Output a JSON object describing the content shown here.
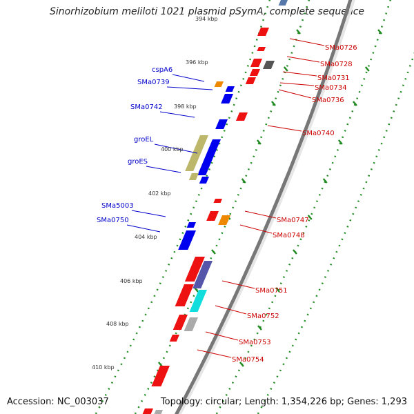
{
  "title": "Sinorhizobium meliloti 1021 plasmid pSymA, complete sequence",
  "footer": {
    "accession": "Accession: NC_003037",
    "summary": "Topology: circular; Length: 1,354,226 bp; Genes: 1,293"
  },
  "colors": {
    "forward_label": "#0000cc",
    "reverse_label": "#cc0000",
    "tick": "#228b22",
    "backbone": "#777777"
  },
  "kbp_labels": [
    "394 kbp",
    "396 kbp",
    "398 kbp",
    "400 kbp",
    "402 kbp",
    "404 kbp",
    "406 kbp",
    "408 kbp",
    "410 kbp"
  ],
  "forward_genes": [
    "cspA6",
    "SMa0739",
    "SMa0742",
    "groEL",
    "groES",
    "SMa5003",
    "SMa0750"
  ],
  "reverse_genes": [
    "SMa0726",
    "SMa0728",
    "SMa0731",
    "SMa0734",
    "SMa0736",
    "SMa0740",
    "SMa0747",
    "SMa0748",
    "SMa0751",
    "SMa0752",
    "SMa0753",
    "SMa0754"
  ]
}
